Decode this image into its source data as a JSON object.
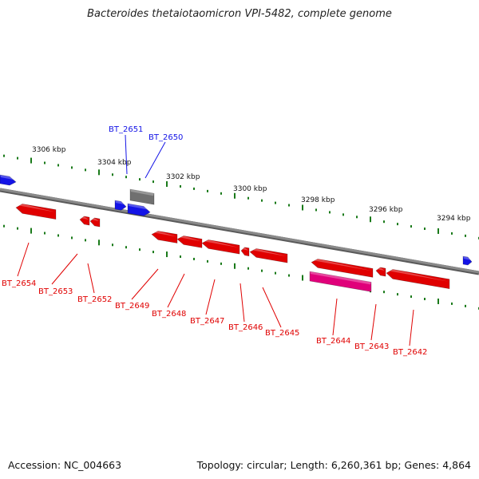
{
  "title": "Bacteroides thetaiotaomicron VPI-5482, complete genome",
  "footer": {
    "accession": "Accession: NC_004663",
    "summary": "Topology: circular; Length: 6,260,361 bp; Genes: 4,864"
  },
  "colors": {
    "forward_gene": "#1414e6",
    "reverse_gene": "#e00000",
    "other_gene": "#707070",
    "highlight_gene": "#e0007a",
    "tick": "#1a7a1a",
    "backbone": "#8a8a8a"
  },
  "scale_labels": [
    "3306 kbp",
    "3304 kbp",
    "3302 kbp",
    "3300 kbp",
    "3298 kbp",
    "3296 kbp",
    "3294 kbp"
  ],
  "genes": [
    {
      "label": "BT_2651",
      "strand": "forward"
    },
    {
      "label": "BT_2650",
      "strand": "forward"
    },
    {
      "label": "BT_2654",
      "strand": "reverse"
    },
    {
      "label": "BT_2653",
      "strand": "reverse"
    },
    {
      "label": "BT_2652",
      "strand": "reverse"
    },
    {
      "label": "BT_2649",
      "strand": "reverse"
    },
    {
      "label": "BT_2648",
      "strand": "reverse"
    },
    {
      "label": "BT_2647",
      "strand": "reverse"
    },
    {
      "label": "BT_2646",
      "strand": "reverse"
    },
    {
      "label": "BT_2645",
      "strand": "reverse"
    },
    {
      "label": "BT_2644",
      "strand": "reverse"
    },
    {
      "label": "BT_2643",
      "strand": "reverse"
    },
    {
      "label": "BT_2642",
      "strand": "reverse"
    }
  ]
}
